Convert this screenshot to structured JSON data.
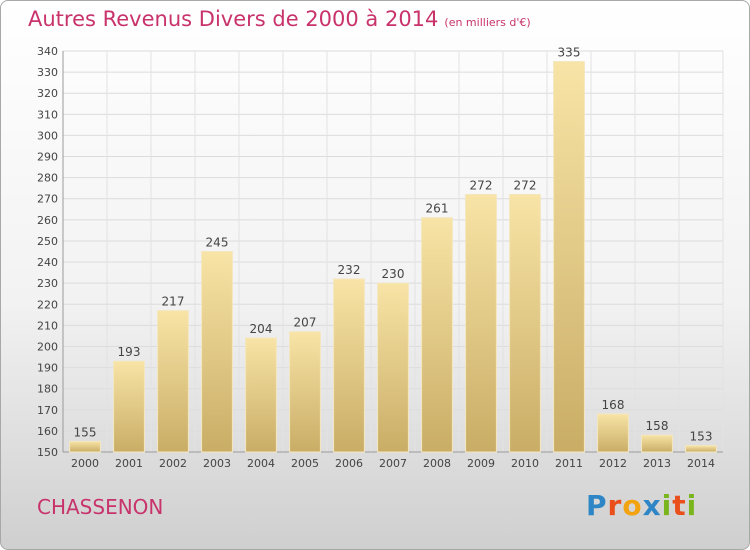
{
  "title": "Autres Revenus Divers de 2000 à 2014",
  "subtitle": "(en milliers d'€)",
  "commune": "CHASSENON",
  "logo": {
    "letters": [
      {
        "char": "P",
        "color": "#2f86c6"
      },
      {
        "char": "r",
        "color": "#e94e1b"
      },
      {
        "char": "o",
        "color": "#f2a30f"
      },
      {
        "char": "x",
        "color": "#2f86c6"
      },
      {
        "char": "i",
        "color": "#7ab51d"
      },
      {
        "char": "t",
        "color": "#e94e1b"
      },
      {
        "char": "i",
        "color": "#7ab51d"
      }
    ]
  },
  "colors": {
    "accent": "#c8336b",
    "bar_light": "#f8e4a6",
    "bar_dark": "#c9ad66"
  },
  "chart_data": {
    "type": "bar",
    "categories": [
      "2000",
      "2001",
      "2002",
      "2003",
      "2004",
      "2005",
      "2006",
      "2007",
      "2008",
      "2009",
      "2010",
      "2011",
      "2012",
      "2013",
      "2014"
    ],
    "values": [
      155,
      193,
      217,
      245,
      204,
      207,
      232,
      230,
      261,
      272,
      272,
      335,
      168,
      158,
      153
    ],
    "ylim": [
      150,
      340
    ],
    "yticks": [
      150,
      160,
      170,
      180,
      190,
      200,
      210,
      220,
      230,
      240,
      250,
      260,
      270,
      280,
      290,
      300,
      310,
      320,
      330,
      340
    ],
    "grid": true,
    "data_labels": true
  }
}
